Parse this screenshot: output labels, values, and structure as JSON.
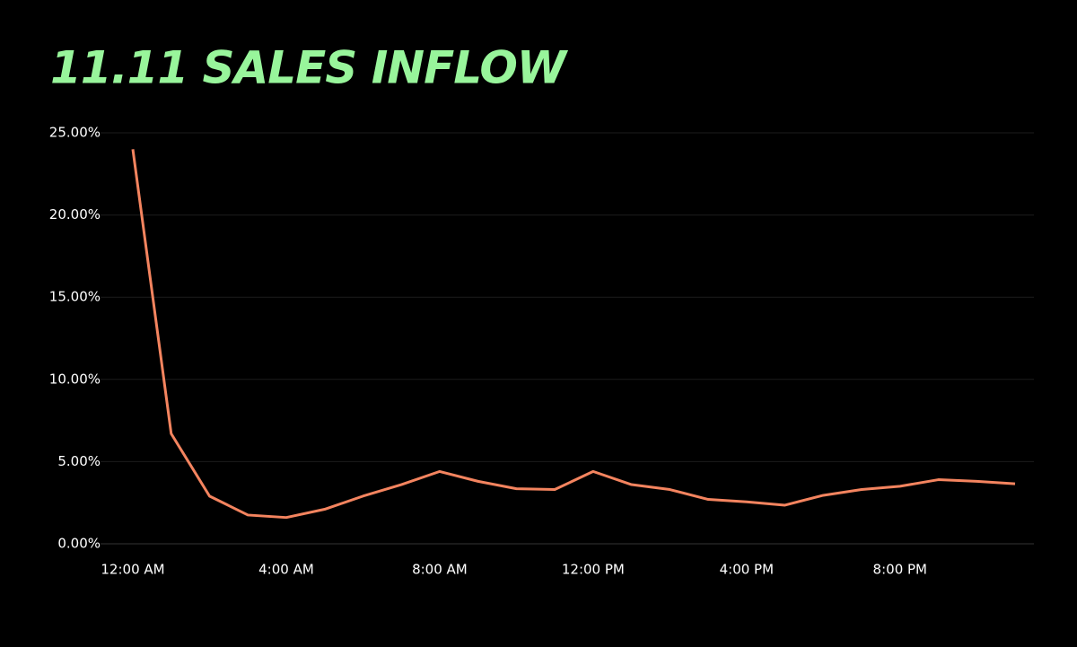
{
  "chart_data": {
    "type": "line",
    "title": "11.11 SALES INFLOW",
    "categories": [
      "12:00 AM",
      null,
      null,
      null,
      "4:00 AM",
      null,
      null,
      null,
      "8:00 AM",
      null,
      null,
      null,
      "12:00 PM",
      null,
      null,
      null,
      "4:00 PM",
      null,
      null,
      null,
      "8:00 PM",
      null,
      null,
      null
    ],
    "values": [
      24.0,
      6.7,
      2.9,
      1.75,
      1.6,
      2.1,
      2.9,
      3.6,
      4.4,
      3.8,
      3.35,
      3.3,
      4.4,
      3.6,
      3.3,
      2.7,
      2.55,
      2.35,
      2.95,
      3.3,
      3.5,
      3.9,
      3.8,
      3.65
    ],
    "color": "#f4845f",
    "ylim": [
      0,
      25
    ],
    "yticks": [
      {
        "value": 0,
        "label": "0.00%"
      },
      {
        "value": 5,
        "label": "5.00%"
      },
      {
        "value": 10,
        "label": "10.00%"
      },
      {
        "value": 15,
        "label": "15.00%"
      },
      {
        "value": 20,
        "label": "20.00%"
      },
      {
        "value": 25,
        "label": "25.00%"
      }
    ],
    "grid": true
  }
}
